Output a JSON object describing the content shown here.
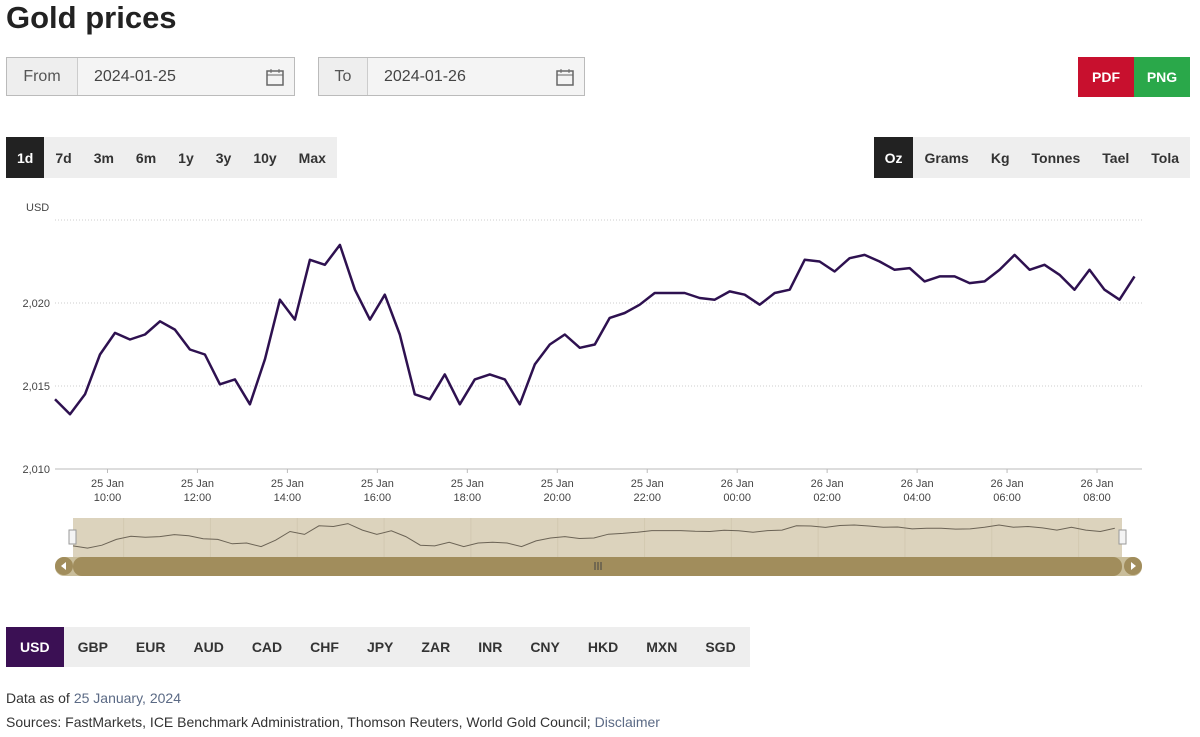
{
  "header": {
    "title": "Gold prices"
  },
  "date_range": {
    "from_label": "From",
    "from_value": "2024-01-25",
    "to_label": "To",
    "to_value": "2024-01-26"
  },
  "export_buttons": [
    "PDF",
    "PNG"
  ],
  "periods": {
    "items": [
      "1d",
      "7d",
      "3m",
      "6m",
      "1y",
      "3y",
      "10y",
      "Max"
    ],
    "selected": 0
  },
  "units": {
    "items": [
      "Oz",
      "Grams",
      "Kg",
      "Tonnes",
      "Tael",
      "Tola"
    ],
    "selected": 0
  },
  "chart_data": {
    "type": "line",
    "y_label": "USD",
    "color": "#2e1150",
    "grid": true,
    "ylim": [
      2010,
      2025
    ],
    "yticks": [
      {
        "value": 2010,
        "label": "2,010"
      },
      {
        "value": 2015,
        "label": "2,015"
      },
      {
        "value": 2020,
        "label": "2,020"
      }
    ],
    "xlim": [
      "25 Jan 08:50",
      "26 Jan 09:00"
    ],
    "xticks": [
      {
        "value": "25 Jan 10:00",
        "label": [
          "25 Jan",
          "10:00"
        ]
      },
      {
        "value": "25 Jan 12:00",
        "label": [
          "25 Jan",
          "12:00"
        ]
      },
      {
        "value": "25 Jan 14:00",
        "label": [
          "25 Jan",
          "14:00"
        ]
      },
      {
        "value": "25 Jan 16:00",
        "label": [
          "25 Jan",
          "16:00"
        ]
      },
      {
        "value": "25 Jan 18:00",
        "label": [
          "25 Jan",
          "18:00"
        ]
      },
      {
        "value": "25 Jan 20:00",
        "label": [
          "25 Jan",
          "20:00"
        ]
      },
      {
        "value": "25 Jan 22:00",
        "label": [
          "25 Jan",
          "22:00"
        ]
      },
      {
        "value": "26 Jan 00:00",
        "label": [
          "26 Jan",
          "00:00"
        ]
      },
      {
        "value": "26 Jan 02:00",
        "label": [
          "26 Jan",
          "02:00"
        ]
      },
      {
        "value": "26 Jan 04:00",
        "label": [
          "26 Jan",
          "04:00"
        ]
      },
      {
        "value": "26 Jan 06:00",
        "label": [
          "26 Jan",
          "06:00"
        ]
      },
      {
        "value": "26 Jan 08:00",
        "label": [
          "26 Jan",
          "08:00"
        ]
      }
    ],
    "x": [
      "25 Jan 08:50",
      "25 Jan 09:10",
      "25 Jan 09:30",
      "25 Jan 09:50",
      "25 Jan 10:10",
      "25 Jan 10:30",
      "25 Jan 10:50",
      "25 Jan 11:10",
      "25 Jan 11:30",
      "25 Jan 11:50",
      "25 Jan 12:10",
      "25 Jan 12:30",
      "25 Jan 12:50",
      "25 Jan 13:10",
      "25 Jan 13:30",
      "25 Jan 13:50",
      "25 Jan 14:10",
      "25 Jan 14:30",
      "25 Jan 14:50",
      "25 Jan 15:10",
      "25 Jan 15:30",
      "25 Jan 15:50",
      "25 Jan 16:10",
      "25 Jan 16:30",
      "25 Jan 16:50",
      "25 Jan 17:10",
      "25 Jan 17:30",
      "25 Jan 17:50",
      "25 Jan 18:10",
      "25 Jan 18:30",
      "25 Jan 18:50",
      "25 Jan 19:10",
      "25 Jan 19:30",
      "25 Jan 19:50",
      "25 Jan 20:10",
      "25 Jan 20:30",
      "25 Jan 20:50",
      "25 Jan 21:10",
      "25 Jan 21:30",
      "25 Jan 21:50",
      "25 Jan 22:10",
      "25 Jan 22:30",
      "25 Jan 22:50",
      "25 Jan 23:10",
      "25 Jan 23:30",
      "25 Jan 23:50",
      "26 Jan 00:10",
      "26 Jan 00:30",
      "26 Jan 00:50",
      "26 Jan 01:10",
      "26 Jan 01:30",
      "26 Jan 01:50",
      "26 Jan 02:10",
      "26 Jan 02:30",
      "26 Jan 02:50",
      "26 Jan 03:10",
      "26 Jan 03:30",
      "26 Jan 03:50",
      "26 Jan 04:10",
      "26 Jan 04:30",
      "26 Jan 04:50",
      "26 Jan 05:10",
      "26 Jan 05:30",
      "26 Jan 05:50",
      "26 Jan 06:10",
      "26 Jan 06:30",
      "26 Jan 06:50",
      "26 Jan 07:10",
      "26 Jan 07:30",
      "26 Jan 07:50",
      "26 Jan 08:10",
      "26 Jan 08:30",
      "26 Jan 08:50"
    ],
    "values": [
      2014.2,
      2013.3,
      2014.5,
      2016.9,
      2018.2,
      2017.8,
      2018.1,
      2018.9,
      2018.4,
      2017.2,
      2016.9,
      2015.1,
      2015.4,
      2013.9,
      2016.6,
      2020.2,
      2019.0,
      2022.6,
      2022.3,
      2023.5,
      2020.8,
      2019.0,
      2020.5,
      2018.1,
      2014.5,
      2014.2,
      2015.7,
      2013.9,
      2015.4,
      2015.7,
      2015.4,
      2013.9,
      2016.3,
      2017.5,
      2018.1,
      2017.3,
      2017.5,
      2019.1,
      2019.4,
      2019.9,
      2020.6,
      2020.6,
      2020.6,
      2020.3,
      2020.2,
      2020.7,
      2020.5,
      2019.9,
      2020.6,
      2020.8,
      2022.6,
      2022.5,
      2021.9,
      2022.7,
      2022.9,
      2022.5,
      2022.0,
      2022.1,
      2021.3,
      2021.6,
      2021.6,
      2021.2,
      2021.3,
      2022.0,
      2022.9,
      2022.0,
      2022.3,
      2021.7,
      2020.8,
      2022.0,
      2020.8,
      2020.2,
      2021.6
    ]
  },
  "currencies": {
    "items": [
      "USD",
      "GBP",
      "EUR",
      "AUD",
      "CAD",
      "CHF",
      "JPY",
      "ZAR",
      "INR",
      "CNY",
      "HKD",
      "MXN",
      "SGD"
    ],
    "selected": 0
  },
  "footer": {
    "data_as_of_label": "Data as of",
    "data_as_of_date": "25 January, 2024",
    "sources": "Sources: FastMarkets, ICE Benchmark Administration, Thomson Reuters, World Gold Council;",
    "disclaimer": "Disclaimer"
  }
}
